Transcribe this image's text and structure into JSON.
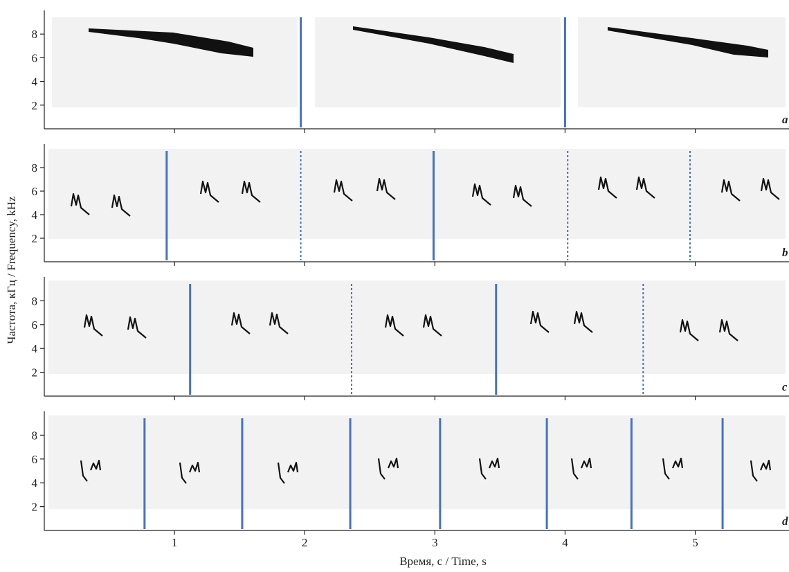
{
  "axis_labels": {
    "x": "Время, с / Time, s",
    "y": "Частота, кГц / Frequency, kHz"
  },
  "divider_color": "#4472c4",
  "chart_data": [
    {
      "type": "spectrogram",
      "label": "a",
      "xlim": [
        0,
        5.72
      ],
      "ylim": [
        0,
        10
      ],
      "yticks": [
        2,
        4,
        6,
        8
      ],
      "xticks": [
        1,
        2,
        3,
        4,
        5
      ],
      "dividers": [
        {
          "x": 1.97,
          "style": "solid"
        },
        {
          "x": 4.0,
          "style": "solid"
        }
      ]
    },
    {
      "type": "spectrogram",
      "label": "b",
      "xlim": [
        0,
        5.72
      ],
      "ylim": [
        0,
        10
      ],
      "yticks": [
        2,
        4,
        6,
        8
      ],
      "xticks": [
        1,
        2,
        3,
        4,
        5
      ],
      "dividers": [
        {
          "x": 0.94,
          "style": "solid"
        },
        {
          "x": 1.97,
          "style": "dotted"
        },
        {
          "x": 2.99,
          "style": "solid"
        },
        {
          "x": 4.02,
          "style": "dotted"
        },
        {
          "x": 4.96,
          "style": "dotted"
        }
      ]
    },
    {
      "type": "spectrogram",
      "label": "c",
      "xlim": [
        0,
        5.72
      ],
      "ylim": [
        0,
        10
      ],
      "yticks": [
        2,
        4,
        6,
        8
      ],
      "xticks": [
        1,
        2,
        3,
        4,
        5
      ],
      "dividers": [
        {
          "x": 1.12,
          "style": "solid"
        },
        {
          "x": 2.36,
          "style": "dotted"
        },
        {
          "x": 3.47,
          "style": "solid"
        },
        {
          "x": 4.6,
          "style": "dotted"
        }
      ]
    },
    {
      "type": "spectrogram",
      "label": "d",
      "xlim": [
        0,
        5.72
      ],
      "ylim": [
        0,
        10
      ],
      "yticks": [
        2,
        4,
        6,
        8
      ],
      "xticks": [
        1,
        2,
        3,
        4,
        5
      ],
      "dividers": [
        {
          "x": 0.77,
          "style": "solid"
        },
        {
          "x": 1.52,
          "style": "solid"
        },
        {
          "x": 2.35,
          "style": "solid"
        },
        {
          "x": 3.04,
          "style": "solid"
        },
        {
          "x": 3.86,
          "style": "solid"
        },
        {
          "x": 4.51,
          "style": "solid"
        },
        {
          "x": 5.21,
          "style": "solid"
        }
      ]
    }
  ]
}
